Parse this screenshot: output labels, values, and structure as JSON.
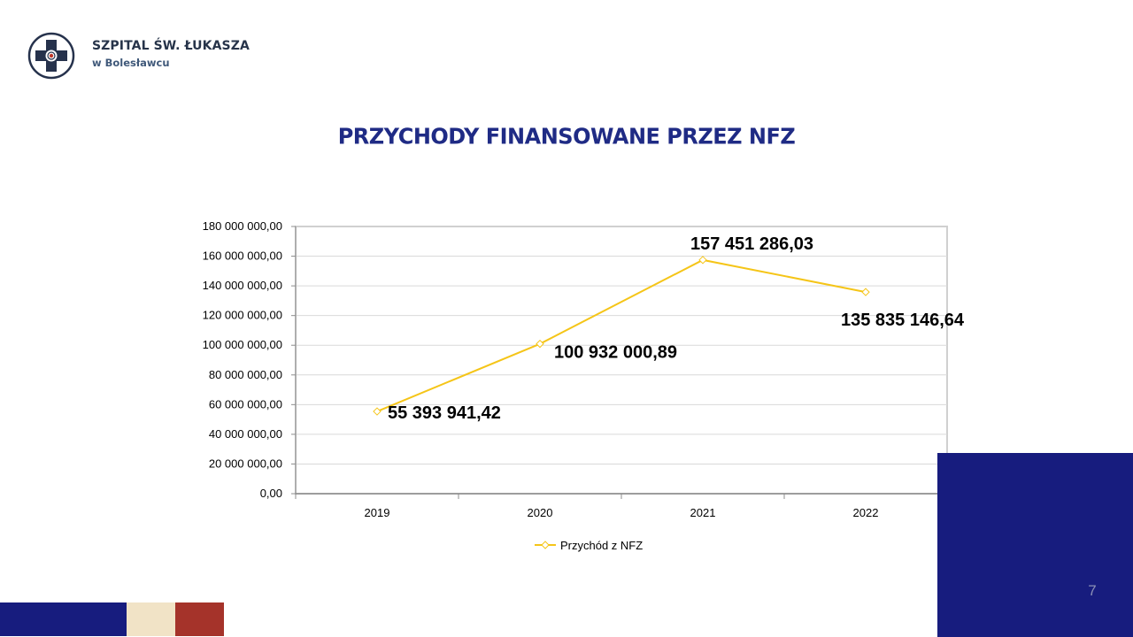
{
  "brand": {
    "name": "SZPITAL ŚW. ŁUKASZA",
    "subtitle": "w Bolesławcu"
  },
  "slide": {
    "title": "PRZYCHODY FINANSOWANE PRZEZ NFZ",
    "page_number": "7"
  },
  "colors": {
    "title": "#1f2b85",
    "navy": "#171c7e",
    "cream": "#f1e3c6",
    "red": "#a5332a",
    "series_line": "#f5c518"
  },
  "chart_data": {
    "type": "line",
    "title": "",
    "xlabel": "",
    "ylabel": "",
    "categories": [
      "2019",
      "2020",
      "2021",
      "2022"
    ],
    "ylim": [
      0,
      180000000
    ],
    "yticks": [
      0,
      20000000,
      40000000,
      60000000,
      80000000,
      100000000,
      120000000,
      140000000,
      160000000,
      180000000
    ],
    "ytick_labels": [
      "0,00",
      "20 000 000,00",
      "40 000 000,00",
      "60 000 000,00",
      "80 000 000,00",
      "100 000 000,00",
      "120 000 000,00",
      "140 000 000,00",
      "160 000 000,00",
      "180 000 000,00"
    ],
    "grid": true,
    "legend_position": "bottom",
    "series": [
      {
        "name": "Przychód z NFZ",
        "color": "#f5c518",
        "values": [
          55393941.42,
          100932000.89,
          157451286.03,
          135835146.64
        ],
        "data_labels": [
          "55 393 941,42",
          "100 932 000,89",
          "157 451 286,03",
          "135 835 146,64"
        ]
      }
    ]
  }
}
